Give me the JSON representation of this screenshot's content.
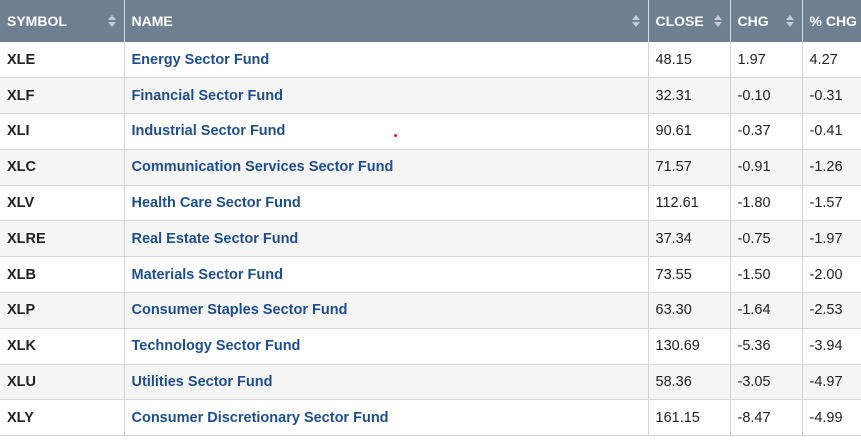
{
  "table": {
    "headers": {
      "symbol": "SYMBOL",
      "name": "NAME",
      "close": "CLOSE",
      "chg": "CHG",
      "pct_chg": "% CHG"
    },
    "rows": [
      {
        "symbol": "XLE",
        "name": "Energy Sector Fund",
        "close": "48.15",
        "chg": "1.97",
        "pct_chg": "4.27"
      },
      {
        "symbol": "XLF",
        "name": "Financial Sector Fund",
        "close": "32.31",
        "chg": "-0.10",
        "pct_chg": "-0.31"
      },
      {
        "symbol": "XLI",
        "name": "Industrial Sector Fund",
        "close": "90.61",
        "chg": "-0.37",
        "pct_chg": "-0.41"
      },
      {
        "symbol": "XLC",
        "name": "Communication Services Sector Fund",
        "close": "71.57",
        "chg": "-0.91",
        "pct_chg": "-1.26"
      },
      {
        "symbol": "XLV",
        "name": "Health Care Sector Fund",
        "close": "112.61",
        "chg": "-1.80",
        "pct_chg": "-1.57"
      },
      {
        "symbol": "XLRE",
        "name": "Real Estate Sector Fund",
        "close": "37.34",
        "chg": "-0.75",
        "pct_chg": "-1.97"
      },
      {
        "symbol": "XLB",
        "name": "Materials Sector Fund",
        "close": "73.55",
        "chg": "-1.50",
        "pct_chg": "-2.00"
      },
      {
        "symbol": "XLP",
        "name": "Consumer Staples Sector Fund",
        "close": "63.30",
        "chg": "-1.64",
        "pct_chg": "-2.53"
      },
      {
        "symbol": "XLK",
        "name": "Technology Sector Fund",
        "close": "130.69",
        "chg": "-5.36",
        "pct_chg": "-3.94"
      },
      {
        "symbol": "XLU",
        "name": "Utilities Sector Fund",
        "close": "58.36",
        "chg": "-3.05",
        "pct_chg": "-4.97"
      },
      {
        "symbol": "XLY",
        "name": "Consumer Discretionary Sector Fund",
        "close": "161.15",
        "chg": "-8.47",
        "pct_chg": "-4.99"
      }
    ]
  },
  "colors": {
    "header_bg": "#6e7f92",
    "link": "#1f4e8c",
    "stripe": "#f5f5f5"
  }
}
